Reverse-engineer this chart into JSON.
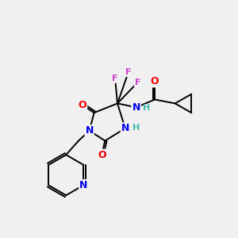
{
  "background_color": "#f0f0f0",
  "atom_colors": {
    "C": "#000000",
    "N": "#0000ee",
    "O": "#ee0000",
    "F": "#cc44cc",
    "H": "#44bbaa"
  },
  "bond_color": "#000000",
  "bond_width": 1.4,
  "figsize": [
    3.0,
    3.0
  ],
  "dpi": 100
}
